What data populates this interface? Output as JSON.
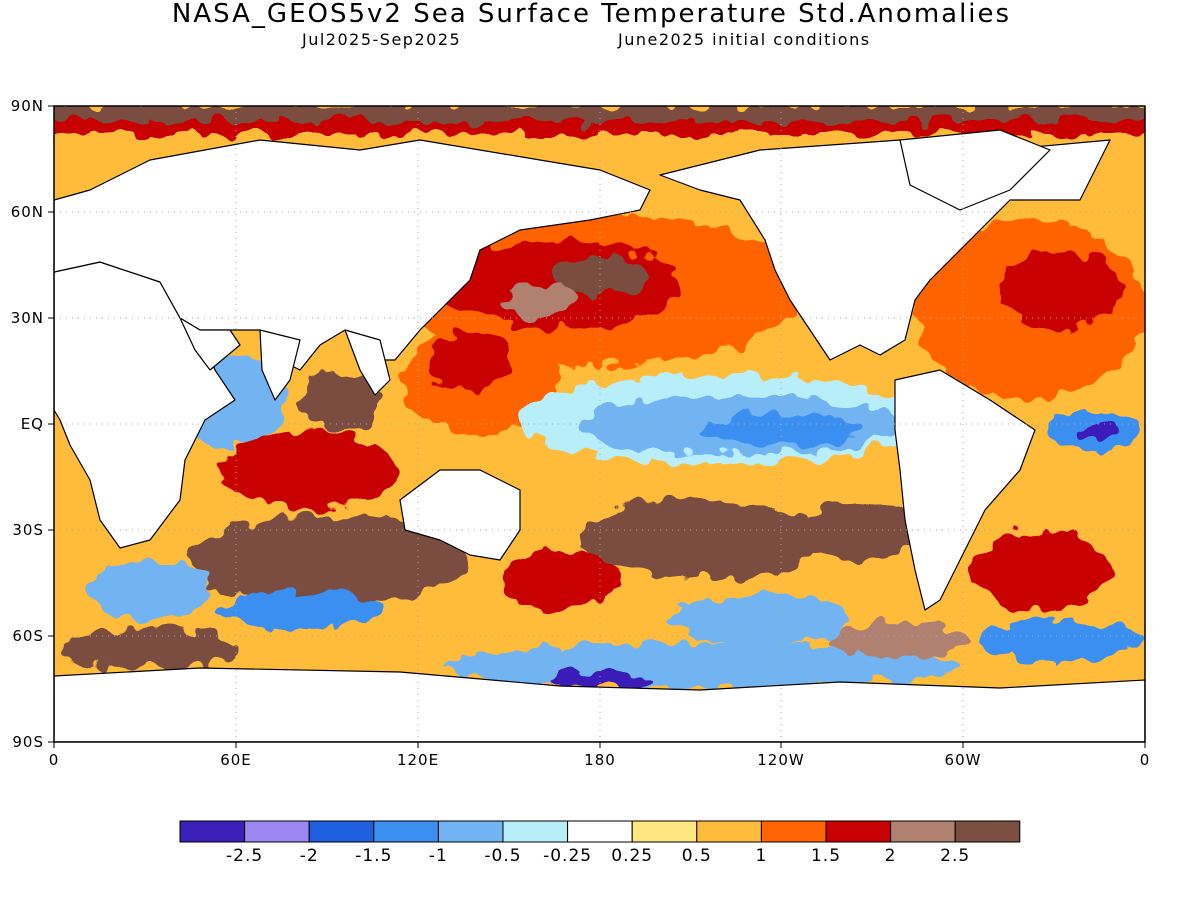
{
  "title": "NASA_GEOS5v2 Sea Surface Temperature Std.Anomalies",
  "subtitle_left": "Jul2025-Sep2025",
  "subtitle_right": "June2025 initial conditions",
  "y_ticks": [
    "90N",
    "60N",
    "30N",
    "EQ",
    "30S",
    "60S",
    "90S"
  ],
  "x_ticks": [
    "0",
    "60E",
    "120E",
    "180",
    "120W",
    "60W",
    "0"
  ],
  "colorbar": {
    "colors": [
      "#3a1fb8",
      "#9c87f2",
      "#1e5fe0",
      "#3a8ff0",
      "#72b4f2",
      "#b8eefa",
      "#ffffff",
      "#ffe680",
      "#ffbb3a",
      "#ff6400",
      "#c80000",
      "#b08070",
      "#7a4e40"
    ],
    "labels": [
      "-2.5",
      "-2",
      "-1.5",
      "-1",
      "-0.5",
      "-0.25",
      "0.25",
      "0.5",
      "1",
      "1.5",
      "2",
      "2.5"
    ]
  },
  "map_colors": {
    "land": "#ffffff",
    "coastline": "#000000",
    "grid": "#aaaaaa"
  }
}
